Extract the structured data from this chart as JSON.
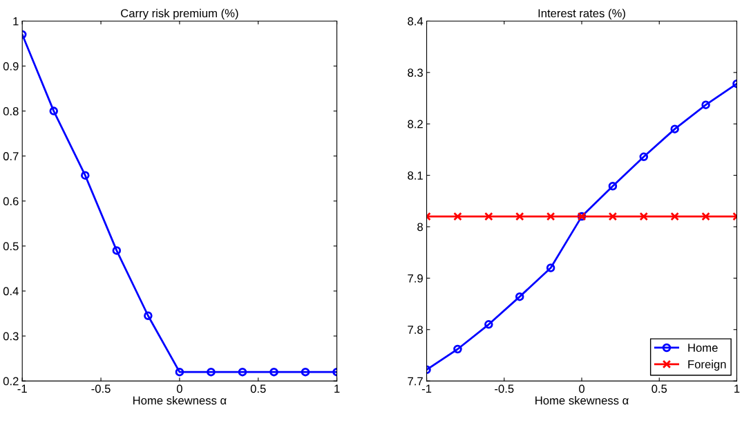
{
  "chart_data": [
    {
      "type": "line",
      "title": "Carry risk premium (%)",
      "xlabel": "Home skewness α",
      "x": [
        -1,
        -0.8,
        -0.6,
        -0.4,
        -0.2,
        0,
        0.2,
        0.4,
        0.6,
        0.8,
        1
      ],
      "series": [
        {
          "color": "#0000ff",
          "marker": "circle",
          "values": [
            0.97,
            0.8,
            0.657,
            0.49,
            0.345,
            0.22,
            0.22,
            0.22,
            0.22,
            0.22,
            0.22
          ]
        }
      ],
      "xlim": [
        -1,
        1
      ],
      "xticks": [
        -1,
        -0.5,
        0,
        0.5,
        1
      ],
      "ylim": [
        0.2,
        1
      ],
      "yticks": [
        0.2,
        0.3,
        0.4,
        0.5,
        0.6,
        0.7,
        0.8,
        0.9,
        1
      ],
      "grid": false,
      "legend": false
    },
    {
      "type": "line",
      "title": "Interest rates (%)",
      "xlabel": "Home skewness α",
      "x": [
        -1,
        -0.8,
        -0.6,
        -0.4,
        -0.2,
        0,
        0.2,
        0.4,
        0.6,
        0.8,
        1
      ],
      "series": [
        {
          "name": "Home",
          "color": "#0000ff",
          "marker": "circle",
          "values": [
            7.722,
            7.762,
            7.81,
            7.864,
            7.92,
            8.02,
            8.079,
            8.136,
            8.19,
            8.237,
            8.278
          ]
        },
        {
          "name": "Foreign",
          "color": "#ff0000",
          "marker": "cross",
          "values": [
            8.02,
            8.02,
            8.02,
            8.02,
            8.02,
            8.02,
            8.02,
            8.02,
            8.02,
            8.02,
            8.02
          ]
        }
      ],
      "xlim": [
        -1,
        1
      ],
      "xticks": [
        -1,
        -0.5,
        0,
        0.5,
        1
      ],
      "ylim": [
        7.7,
        8.4
      ],
      "yticks": [
        7.7,
        7.8,
        7.9,
        8,
        8.1,
        8.2,
        8.3,
        8.4
      ],
      "grid": false,
      "legend": "bottom right"
    }
  ]
}
